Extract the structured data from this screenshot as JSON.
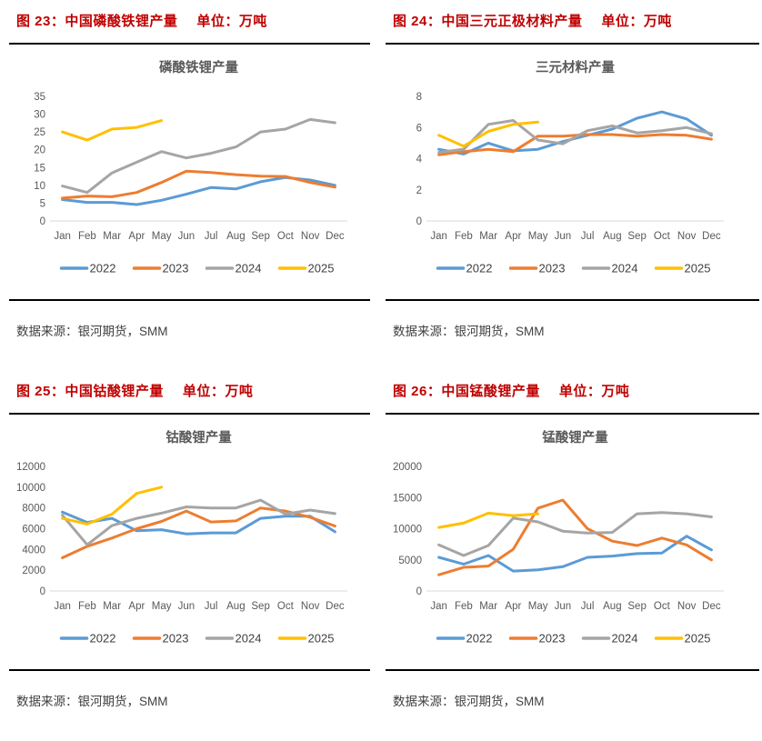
{
  "colors": {
    "section_title": "#C00000",
    "chart_text": "#595959",
    "axis_line": "#D9D9D9",
    "legend_text": "#404040",
    "rule": "#000000",
    "series_2022": "#5B9BD5",
    "series_2023": "#ED7D31",
    "series_2024": "#A5A5A5",
    "series_2025": "#FFC000"
  },
  "sections": [
    {
      "title": "图 23：中国磷酸铁锂产量",
      "unit": "单位：万吨",
      "source": "数据来源：银河期货，SMM"
    },
    {
      "title": "图 24：中国三元正极材料产量",
      "unit": "单位：万吨",
      "source": "数据来源：银河期货，SMM"
    },
    {
      "title": "图 25：中国钴酸锂产量",
      "unit": "单位：万吨",
      "source": "数据来源：银河期货，SMM"
    },
    {
      "title": "图 26：中国锰酸锂产量",
      "unit": "单位：万吨",
      "source": "数据来源：银河期货，SMM"
    }
  ],
  "chart_data": [
    {
      "type": "line",
      "title": "磷酸铁锂产量",
      "xlabel": "",
      "ylabel": "",
      "ylim": [
        0,
        35
      ],
      "ystep": 5,
      "grid": false,
      "legend_position": "bottom",
      "categories": [
        "Jan",
        "Feb",
        "Mar",
        "Apr",
        "May",
        "Jun",
        "Jul",
        "Aug",
        "Sep",
        "Oct",
        "Nov",
        "Dec"
      ],
      "series": [
        {
          "name": "2022",
          "color": "#5B9BD5",
          "values": [
            6,
            5.2,
            5.2,
            4.6,
            5.8,
            7.5,
            9.4,
            9,
            11,
            12.2,
            11.5,
            10
          ]
        },
        {
          "name": "2023",
          "color": "#ED7D31",
          "values": [
            6.4,
            7,
            6.8,
            8,
            10.8,
            14,
            13.6,
            13,
            12.6,
            12.5,
            10.8,
            9.5
          ]
        },
        {
          "name": "2024",
          "color": "#A5A5A5",
          "values": [
            9.8,
            8,
            13.5,
            16.5,
            19.5,
            17.7,
            19,
            20.8,
            25,
            25.8,
            28.5,
            27.6
          ]
        },
        {
          "name": "2025",
          "color": "#FFC000",
          "values": [
            25,
            22.7,
            25.8,
            26.3,
            28.2
          ]
        }
      ]
    },
    {
      "type": "line",
      "title": "三元材料产量",
      "xlabel": "",
      "ylabel": "",
      "ylim": [
        0,
        8
      ],
      "ystep": 2,
      "grid": false,
      "legend_position": "bottom",
      "categories": [
        "Jan",
        "Feb",
        "Mar",
        "Apr",
        "May",
        "Jun",
        "Jul",
        "Aug",
        "Sep",
        "Oct",
        "Nov",
        "Dec"
      ],
      "series": [
        {
          "name": "2022",
          "color": "#5B9BD5",
          "values": [
            4.6,
            4.3,
            5.0,
            4.5,
            4.6,
            5.1,
            5.5,
            5.9,
            6.6,
            7.0,
            6.55,
            5.5
          ]
        },
        {
          "name": "2023",
          "color": "#ED7D31",
          "values": [
            4.25,
            4.45,
            4.6,
            4.45,
            5.45,
            5.45,
            5.55,
            5.55,
            5.45,
            5.55,
            5.5,
            5.25
          ]
        },
        {
          "name": "2024",
          "color": "#A5A5A5",
          "values": [
            4.4,
            4.6,
            6.2,
            6.45,
            5.2,
            4.95,
            5.8,
            6.1,
            5.65,
            5.8,
            6.0,
            5.6
          ]
        },
        {
          "name": "2025",
          "color": "#FFC000",
          "values": [
            5.5,
            4.8,
            5.75,
            6.2,
            6.35
          ]
        }
      ]
    },
    {
      "type": "line",
      "title": "钴酸锂产量",
      "xlabel": "",
      "ylabel": "",
      "ylim": [
        0,
        12000
      ],
      "ystep": 2000,
      "grid": false,
      "legend_position": "bottom",
      "categories": [
        "Jan",
        "Feb",
        "Mar",
        "Apr",
        "May",
        "Jun",
        "Jul",
        "Aug",
        "Sep",
        "Oct",
        "Nov",
        "Dec"
      ],
      "series": [
        {
          "name": "2022",
          "color": "#5B9BD5",
          "values": [
            7600,
            6600,
            7000,
            5800,
            5900,
            5500,
            5600,
            5600,
            7000,
            7200,
            7200,
            5700
          ]
        },
        {
          "name": "2023",
          "color": "#ED7D31",
          "values": [
            3200,
            4300,
            5100,
            6000,
            6700,
            7700,
            6650,
            6750,
            8000,
            7700,
            7100,
            6250
          ]
        },
        {
          "name": "2024",
          "color": "#A5A5A5",
          "values": [
            7300,
            4450,
            6300,
            7000,
            7500,
            8100,
            8000,
            8000,
            8750,
            7400,
            7800,
            7450
          ]
        },
        {
          "name": "2025",
          "color": "#FFC000",
          "values": [
            7000,
            6450,
            7400,
            9400,
            10000
          ]
        }
      ]
    },
    {
      "type": "line",
      "title": "锰酸锂产量",
      "xlabel": "",
      "ylabel": "",
      "ylim": [
        0,
        20000
      ],
      "ystep": 5000,
      "grid": false,
      "legend_position": "bottom",
      "categories": [
        "Jan",
        "Feb",
        "Mar",
        "Apr",
        "May",
        "Jun",
        "Jul",
        "Aug",
        "Sep",
        "Oct",
        "Nov",
        "Dec"
      ],
      "series": [
        {
          "name": "2022",
          "color": "#5B9BD5",
          "values": [
            5400,
            4300,
            5700,
            3200,
            3400,
            3900,
            5400,
            5600,
            6000,
            6100,
            8800,
            6600
          ]
        },
        {
          "name": "2023",
          "color": "#ED7D31",
          "values": [
            2600,
            3800,
            4000,
            6700,
            13300,
            14600,
            10000,
            8000,
            7300,
            8500,
            7400,
            5000
          ]
        },
        {
          "name": "2024",
          "color": "#A5A5A5",
          "values": [
            7400,
            5700,
            7300,
            11700,
            11100,
            9600,
            9300,
            9400,
            12400,
            12600,
            12400,
            11900
          ]
        },
        {
          "name": "2025",
          "color": "#FFC000",
          "values": [
            10200,
            10900,
            12500,
            12100,
            12400
          ]
        }
      ]
    }
  ]
}
